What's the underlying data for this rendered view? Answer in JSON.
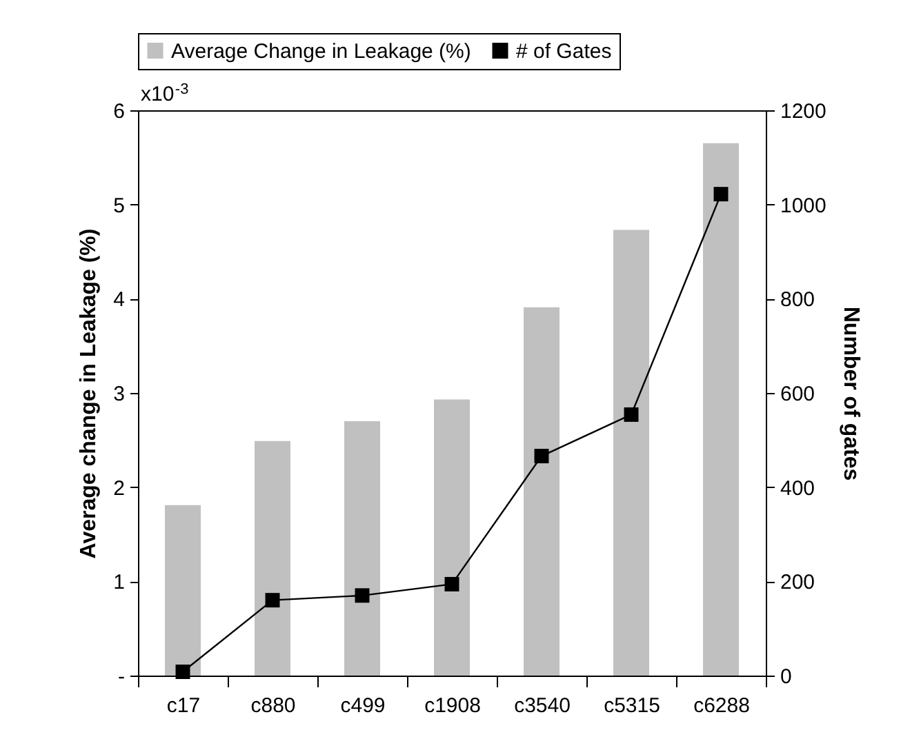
{
  "chart_data": {
    "type": "bar",
    "categories": [
      "c17",
      "c880",
      "c499",
      "c1908",
      "c3540",
      "c5315",
      "c6288"
    ],
    "series": [
      {
        "name": "Average Change in Leakage (%)",
        "color": "#c0c0c0",
        "values": [
          1.81,
          2.49,
          2.7,
          2.93,
          3.91,
          4.73,
          5.65
        ]
      },
      {
        "name": "# of Gates",
        "type": "line",
        "axis": "y2",
        "color": "#000000",
        "values": [
          8,
          160,
          170,
          194,
          466,
          554,
          1022
        ]
      }
    ],
    "ylabel": "Average change in Leakage (%)",
    "y2label": "Number of gates",
    "ylim": [
      0,
      6
    ],
    "yticks": [
      {
        "value": 0,
        "label": "-"
      },
      1,
      2,
      3,
      4,
      5,
      6
    ],
    "y2lim": [
      0,
      1200
    ],
    "y2ticks": [
      0,
      200,
      400,
      600,
      800,
      1000,
      1200
    ],
    "annotations": [
      "x10$^{-3}$"
    ],
    "legend": "top",
    "marker": "square",
    "line_style": "solid",
    "grid": false
  }
}
